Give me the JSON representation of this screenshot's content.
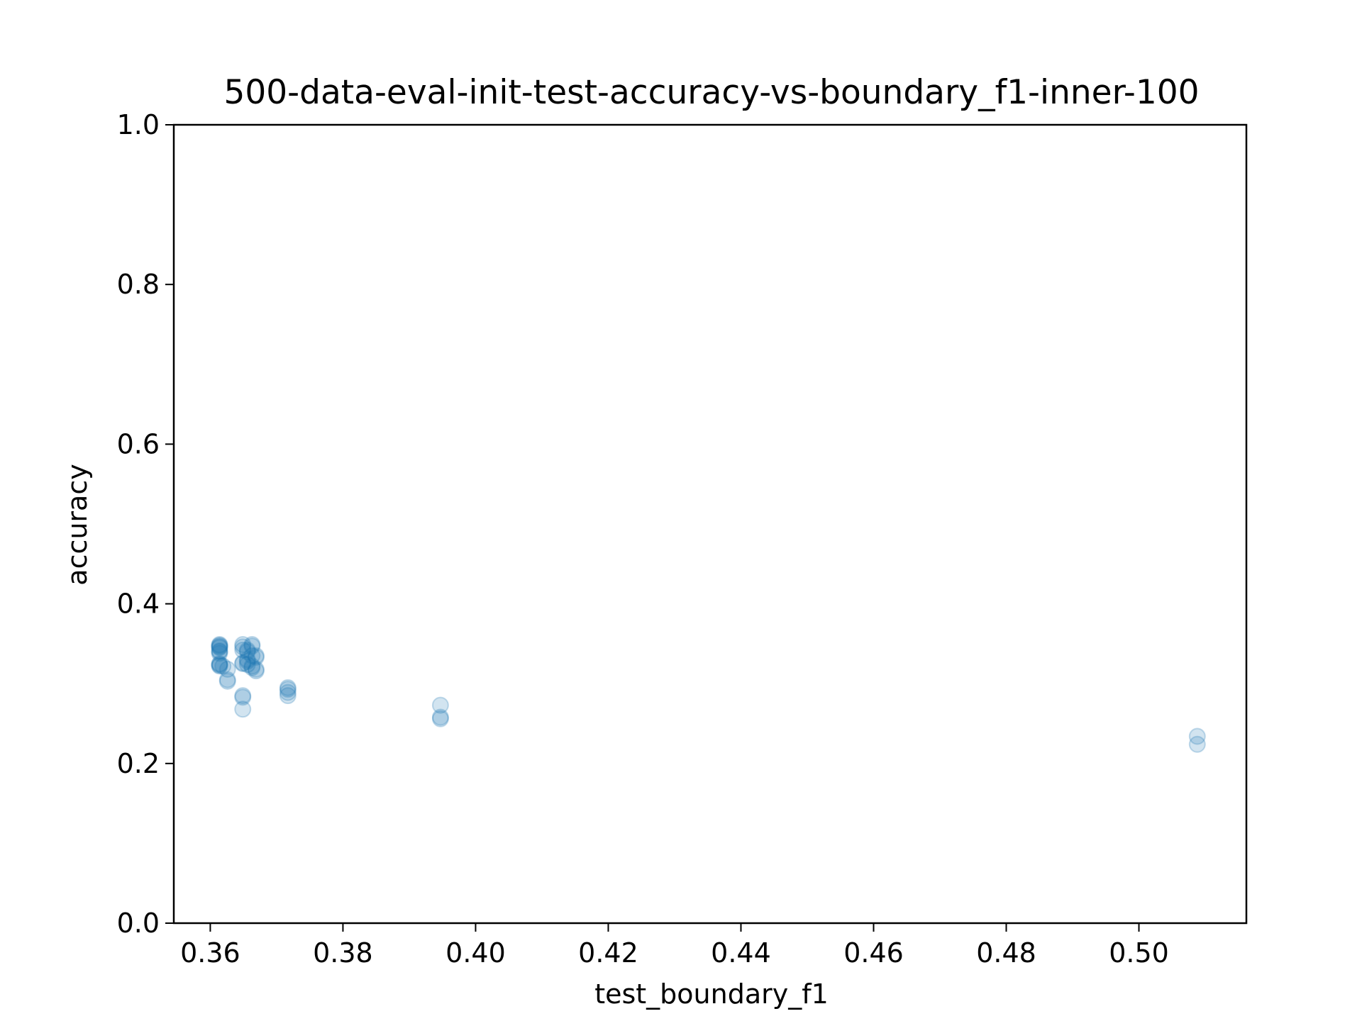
{
  "chart_data": {
    "type": "scatter",
    "title": "500-data-eval-init-test-accuracy-vs-boundary_f1-inner-100",
    "xlabel": "test_boundary_f1",
    "ylabel": "accuracy",
    "xlim": [
      0.3545,
      0.5162
    ],
    "ylim": [
      0.0,
      1.0
    ],
    "x_ticks": [
      0.36,
      0.38,
      0.4,
      0.42,
      0.44,
      0.46,
      0.48,
      0.5
    ],
    "x_tick_labels": [
      "0.36",
      "0.38",
      "0.40",
      "0.42",
      "0.44",
      "0.46",
      "0.48",
      "0.50"
    ],
    "y_ticks": [
      0.0,
      0.2,
      0.4,
      0.6,
      0.8,
      1.0
    ],
    "y_tick_labels": [
      "0.0",
      "0.2",
      "0.4",
      "0.6",
      "0.8",
      "1.0"
    ],
    "grid": false,
    "legend": "none",
    "marker_color": "#1f77b4",
    "marker_alpha": 0.2,
    "points": [
      {
        "x": 0.3614,
        "y": 0.349
      },
      {
        "x": 0.3614,
        "y": 0.348
      },
      {
        "x": 0.3614,
        "y": 0.347
      },
      {
        "x": 0.3614,
        "y": 0.346
      },
      {
        "x": 0.3614,
        "y": 0.345
      },
      {
        "x": 0.3614,
        "y": 0.341
      },
      {
        "x": 0.3614,
        "y": 0.34
      },
      {
        "x": 0.3614,
        "y": 0.338
      },
      {
        "x": 0.3614,
        "y": 0.325
      },
      {
        "x": 0.3614,
        "y": 0.324
      },
      {
        "x": 0.3614,
        "y": 0.323
      },
      {
        "x": 0.3614,
        "y": 0.322
      },
      {
        "x": 0.3619,
        "y": 0.322
      },
      {
        "x": 0.3626,
        "y": 0.318
      },
      {
        "x": 0.3626,
        "y": 0.305
      },
      {
        "x": 0.3626,
        "y": 0.303
      },
      {
        "x": 0.3649,
        "y": 0.349
      },
      {
        "x": 0.3649,
        "y": 0.346
      },
      {
        "x": 0.3649,
        "y": 0.342
      },
      {
        "x": 0.3649,
        "y": 0.326
      },
      {
        "x": 0.3649,
        "y": 0.325
      },
      {
        "x": 0.3649,
        "y": 0.285
      },
      {
        "x": 0.3649,
        "y": 0.283
      },
      {
        "x": 0.3649,
        "y": 0.268
      },
      {
        "x": 0.3656,
        "y": 0.342
      },
      {
        "x": 0.3656,
        "y": 0.34
      },
      {
        "x": 0.3656,
        "y": 0.33
      },
      {
        "x": 0.3656,
        "y": 0.328
      },
      {
        "x": 0.3656,
        "y": 0.324
      },
      {
        "x": 0.3663,
        "y": 0.349
      },
      {
        "x": 0.3663,
        "y": 0.347
      },
      {
        "x": 0.3663,
        "y": 0.335
      },
      {
        "x": 0.3663,
        "y": 0.322
      },
      {
        "x": 0.3663,
        "y": 0.32
      },
      {
        "x": 0.3669,
        "y": 0.335
      },
      {
        "x": 0.3669,
        "y": 0.333
      },
      {
        "x": 0.3669,
        "y": 0.318
      },
      {
        "x": 0.3669,
        "y": 0.316
      },
      {
        "x": 0.3717,
        "y": 0.295
      },
      {
        "x": 0.3717,
        "y": 0.293
      },
      {
        "x": 0.3717,
        "y": 0.289
      },
      {
        "x": 0.3717,
        "y": 0.285
      },
      {
        "x": 0.3947,
        "y": 0.273
      },
      {
        "x": 0.3947,
        "y": 0.258
      },
      {
        "x": 0.3947,
        "y": 0.256
      },
      {
        "x": 0.5088,
        "y": 0.234
      },
      {
        "x": 0.5088,
        "y": 0.224
      }
    ]
  }
}
